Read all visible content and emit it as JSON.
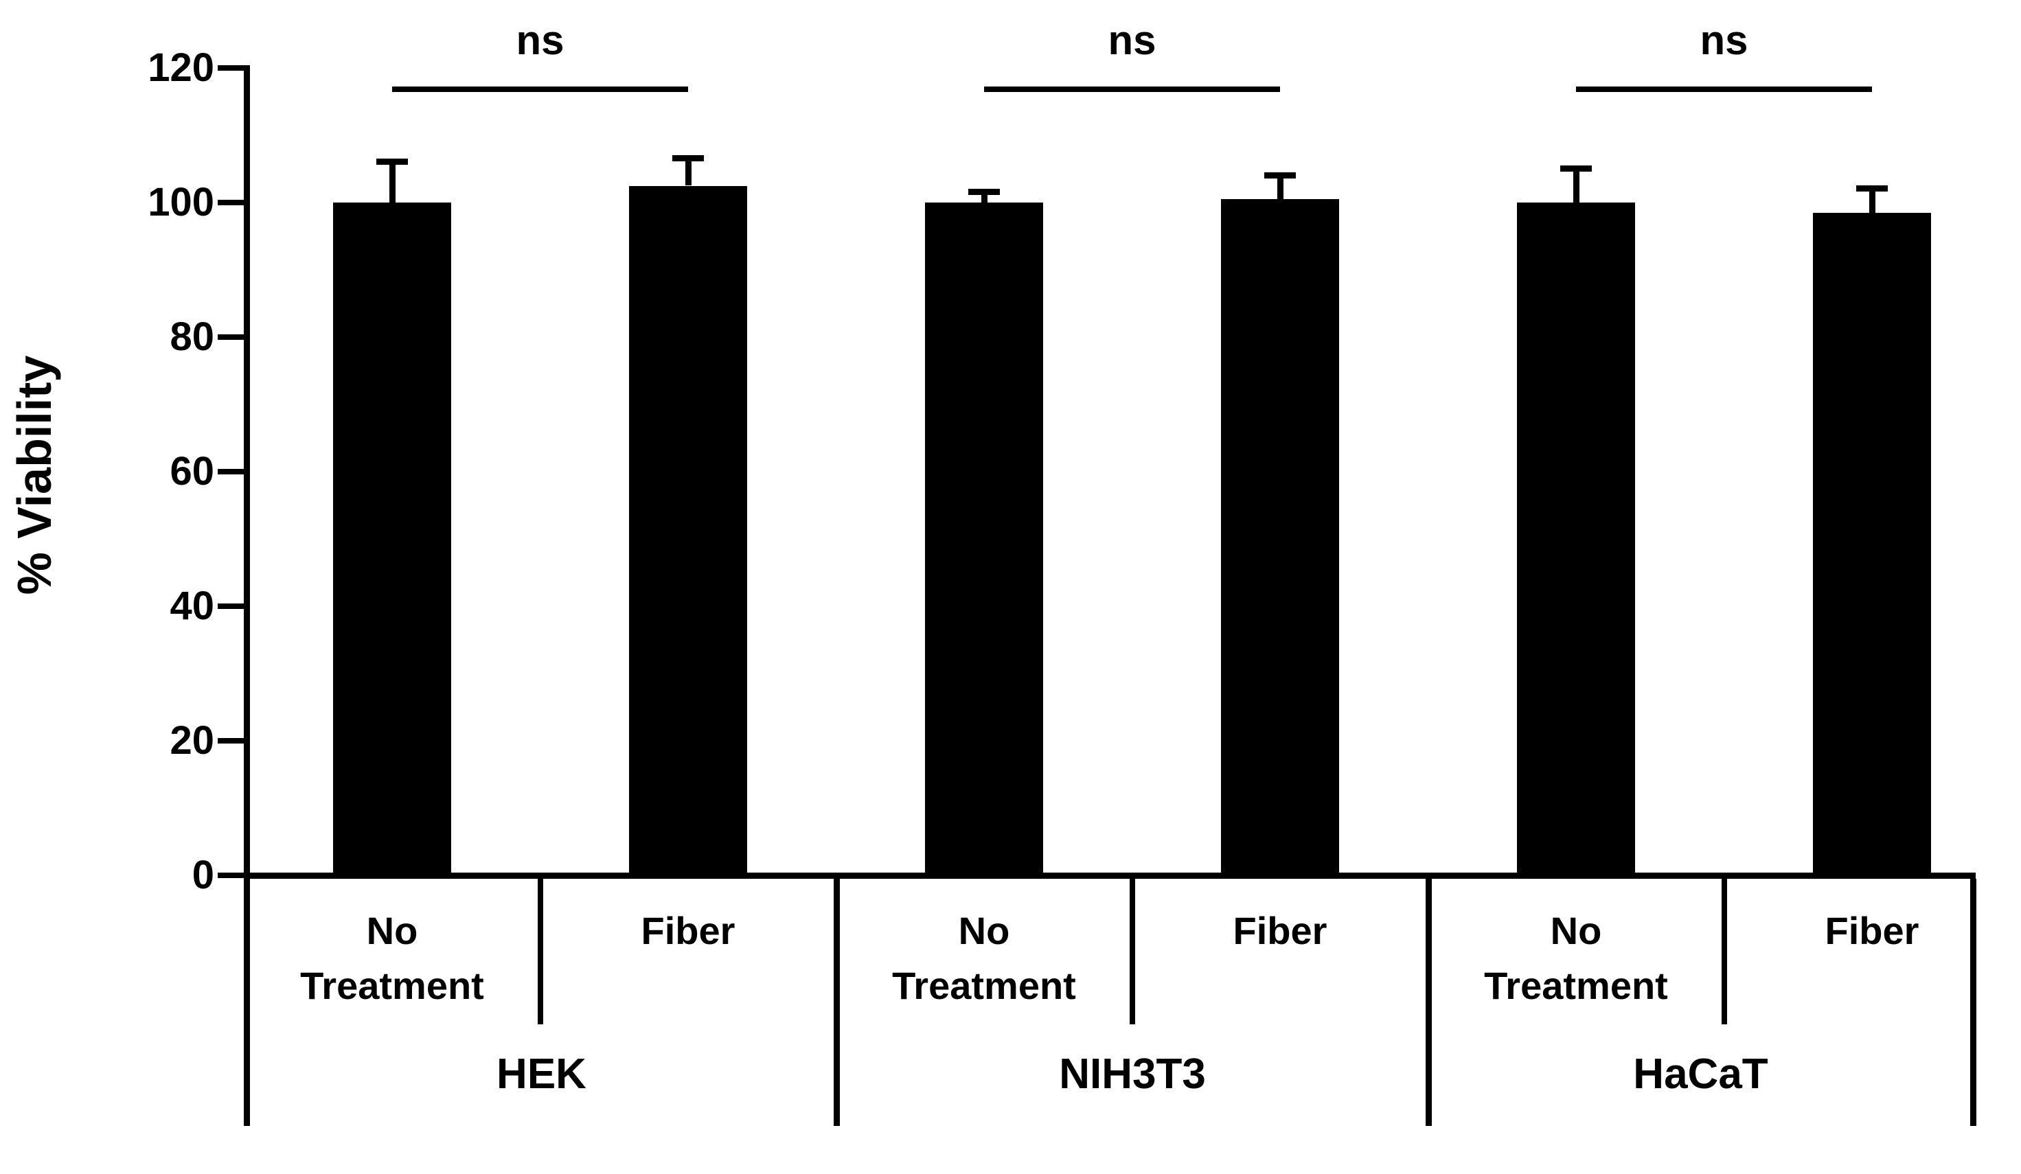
{
  "figure": {
    "background_color": "#ffffff",
    "ink_color": "#000000"
  },
  "chart_data": {
    "type": "bar",
    "title": "",
    "xlabel": "",
    "ylabel": "% Viability",
    "ylim": [
      0,
      120
    ],
    "yticks": [
      "0",
      "20",
      "40",
      "60",
      "80",
      "100",
      "120"
    ],
    "ytick_values": [
      0,
      20,
      40,
      60,
      80,
      100,
      120
    ],
    "grid": false,
    "legend": "none",
    "bar_color": "#000000",
    "error_bar_direction": "upper-only",
    "significance_label": "ns",
    "groups": [
      {
        "label": "HEK",
        "significance": "ns",
        "bars": [
          {
            "category": "No Treatment",
            "value": 100,
            "error": 6
          },
          {
            "category": "Fiber",
            "value": 102.5,
            "error": 4
          }
        ]
      },
      {
        "label": "NIH3T3",
        "significance": "ns",
        "bars": [
          {
            "category": "No Treatment",
            "value": 100,
            "error": 1.5
          },
          {
            "category": "Fiber",
            "value": 100.5,
            "error": 3.5
          }
        ]
      },
      {
        "label": "HaCaT",
        "significance": "ns",
        "bars": [
          {
            "category": "No Treatment",
            "value": 100,
            "error": 5
          },
          {
            "category": "Fiber",
            "value": 98.5,
            "error": 3.5
          }
        ]
      }
    ]
  }
}
